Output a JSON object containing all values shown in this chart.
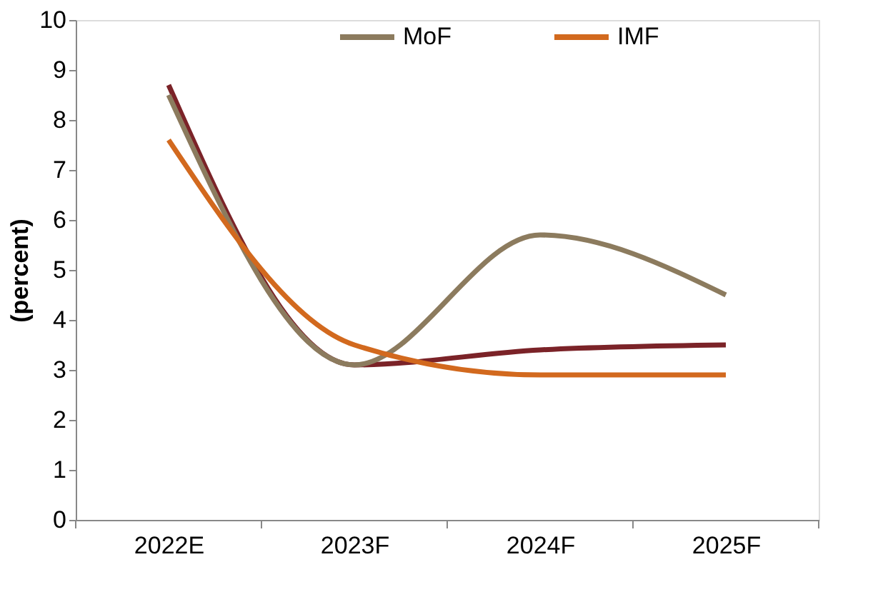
{
  "chart_data": {
    "type": "line",
    "ylabel": "(percent)",
    "categories": [
      "2022E",
      "2023F",
      "2024F",
      "2025F"
    ],
    "series": [
      {
        "color": "#7b2328",
        "values": [
          8.7,
          3.1,
          3.4,
          3.5
        ]
      },
      {
        "name": "MoF",
        "color": "#8c7b5e",
        "values": [
          8.5,
          3.1,
          5.7,
          4.5
        ]
      },
      {
        "name": "IMF",
        "color": "#d2691e",
        "values": [
          7.6,
          3.5,
          2.9,
          2.9
        ]
      }
    ],
    "ylim": [
      0,
      10
    ],
    "yticks": [
      0,
      1,
      2,
      3,
      4,
      5,
      6,
      7,
      8,
      9,
      10
    ],
    "grid": false,
    "legend": "top",
    "marker": "none",
    "line_style": "solid"
  }
}
